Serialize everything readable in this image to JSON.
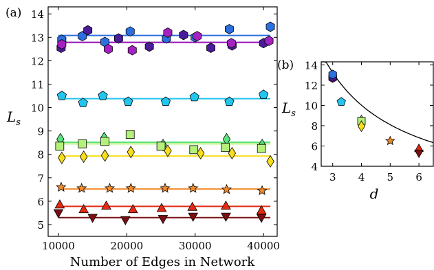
{
  "chart_data": [
    {
      "panel_label": "(a)",
      "type": "scatter",
      "xlabel": "Number of Edges in Network",
      "ylabel": "L_s",
      "xlim": [
        8500,
        42000
      ],
      "ylim": [
        4.5,
        14.3
      ],
      "xticks": [
        10000,
        20000,
        30000,
        40000
      ],
      "yticks": [
        5,
        6,
        7,
        8,
        9,
        10,
        11,
        12,
        13,
        14
      ],
      "grid": false,
      "series": [
        {
          "marker": "hexagon",
          "color": "#2b6fe0",
          "fit": 13.08,
          "x": [
            10500,
            13500,
            16800,
            20500,
            25800,
            30000,
            35000,
            41000
          ],
          "y": [
            12.9,
            13.05,
            12.8,
            13.25,
            12.95,
            13.0,
            13.35,
            13.45
          ]
        },
        {
          "marker": "hexagon",
          "color": "#4a1b9a",
          "fit": 12.78,
          "x": [
            10400,
            14300,
            18800,
            23300,
            28300,
            32300,
            35400,
            40000
          ],
          "y": [
            12.55,
            13.3,
            12.95,
            12.6,
            13.1,
            12.55,
            12.65,
            12.75
          ]
        },
        {
          "marker": "hexagon",
          "color": "#a621c2",
          "fit": 12.78,
          "x": [
            10500,
            17300,
            20800,
            26000,
            30300,
            35300,
            40800
          ],
          "y": [
            12.7,
            12.5,
            12.45,
            13.2,
            13.05,
            12.75,
            12.85
          ]
        },
        {
          "marker": "pentagon",
          "color": "#22c5ee",
          "fit": 10.38,
          "x": [
            10500,
            13600,
            16500,
            20200,
            25700,
            29900,
            35000,
            40000
          ],
          "y": [
            10.5,
            10.2,
            10.5,
            10.25,
            10.25,
            10.45,
            10.25,
            10.55
          ]
        },
        {
          "marker": "diamond",
          "color": "#5ce27c",
          "fit": 8.52,
          "x": [
            10300,
            16700,
            25300,
            34600,
            39800
          ],
          "y": [
            8.65,
            8.7,
            8.4,
            8.65,
            8.4
          ]
        },
        {
          "marker": "square",
          "color": "#b4f07a",
          "fit": 8.45,
          "x": [
            10200,
            13500,
            16800,
            20500,
            25000,
            29800,
            34400,
            39700
          ],
          "y": [
            8.35,
            8.45,
            8.55,
            8.85,
            8.35,
            8.2,
            8.3,
            8.25
          ]
        },
        {
          "marker": "diamond",
          "color": "#f7dd1a",
          "fit": 7.93,
          "x": [
            10500,
            13700,
            16800,
            20600,
            26000,
            30800,
            35400,
            41000
          ],
          "y": [
            7.85,
            7.9,
            7.95,
            8.1,
            8.15,
            8.05,
            8.05,
            7.7
          ]
        },
        {
          "marker": "star",
          "color": "#f08a2a",
          "fit": 6.52,
          "x": [
            10400,
            13400,
            17500,
            20600,
            25600,
            29700,
            34600,
            39800
          ],
          "y": [
            6.6,
            6.55,
            6.55,
            6.55,
            6.55,
            6.55,
            6.5,
            6.45
          ]
        },
        {
          "marker": "triangle-up",
          "color": "#e62a12",
          "fit": 5.78,
          "x": [
            10200,
            13700,
            17000,
            20900,
            25100,
            29600,
            34500,
            39700
          ],
          "y": [
            5.85,
            5.65,
            5.8,
            5.65,
            5.7,
            5.75,
            5.8,
            5.6
          ]
        },
        {
          "marker": "triangle-down",
          "color": "#7a0f12",
          "fit": 5.3,
          "x": [
            10000,
            15000,
            19800,
            25300,
            29700,
            34500,
            39700
          ],
          "y": [
            5.5,
            5.3,
            5.2,
            5.25,
            5.35,
            5.35,
            5.3
          ]
        }
      ]
    },
    {
      "panel_label": "(b)",
      "type": "scatter",
      "xlabel": "d",
      "ylabel": "L_s",
      "xlim": [
        2.6,
        6.5
      ],
      "ylim": [
        4,
        14.3
      ],
      "xticks": [
        3,
        4,
        5,
        6
      ],
      "yticks": [
        4,
        6,
        8,
        10,
        12,
        14
      ],
      "grid": false,
      "curve": {
        "form": "a + b/d",
        "a": 0.4,
        "b": 38.5
      },
      "points": [
        {
          "x": 3,
          "y": 12.7,
          "marker": "hexagon",
          "color": "#a621c2"
        },
        {
          "x": 3,
          "y": 12.8,
          "marker": "hexagon",
          "color": "#4a1b9a"
        },
        {
          "x": 3,
          "y": 13.05,
          "marker": "hexagon",
          "color": "#2b6fe0"
        },
        {
          "x": 3.3,
          "y": 10.35,
          "marker": "pentagon",
          "color": "#22c5ee"
        },
        {
          "x": 4,
          "y": 8.5,
          "marker": "diamond",
          "color": "#5ce27c"
        },
        {
          "x": 4,
          "y": 8.45,
          "marker": "square",
          "color": "#b4f07a"
        },
        {
          "x": 4,
          "y": 7.95,
          "marker": "diamond",
          "color": "#f7dd1a"
        },
        {
          "x": 5,
          "y": 6.5,
          "marker": "star",
          "color": "#f08a2a"
        },
        {
          "x": 6,
          "y": 5.75,
          "marker": "triangle-up",
          "color": "#e62a12"
        },
        {
          "x": 6,
          "y": 5.3,
          "marker": "triangle-down",
          "color": "#7a0f12"
        }
      ]
    }
  ]
}
